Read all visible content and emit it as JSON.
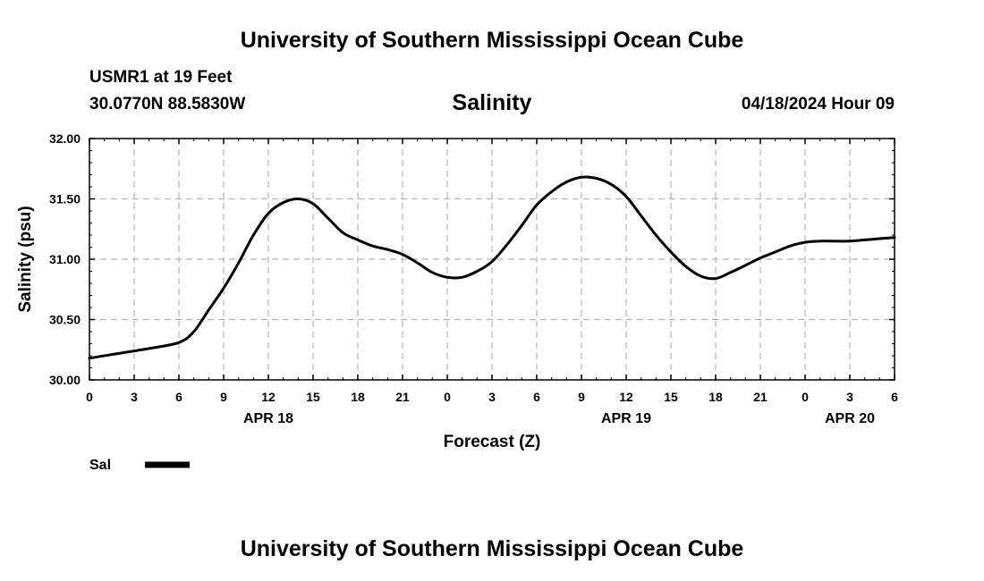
{
  "header": {
    "title": "University of Southern Mississippi Ocean Cube",
    "footer_title": "University of Southern Mississippi Ocean Cube",
    "station": "USMR1 at 19 Feet",
    "coordinates": "30.0770N  88.5830W",
    "parameter": "Salinity",
    "issued": "04/18/2024 Hour 09"
  },
  "chart_data": {
    "type": "line",
    "title": "Salinity",
    "xlabel": "Forecast (Z)",
    "ylabel": "Salinity (psu)",
    "ylim": [
      30.0,
      32.0
    ],
    "xlim": [
      0,
      54
    ],
    "y_ticks": [
      "30.00",
      "30.50",
      "31.00",
      "31.50",
      "32.00"
    ],
    "x_ticks": [
      "0",
      "3",
      "6",
      "9",
      "12",
      "15",
      "18",
      "21",
      "0",
      "3",
      "6",
      "9",
      "12",
      "15",
      "18",
      "21",
      "0",
      "3",
      "6"
    ],
    "day_labels": [
      {
        "label": "APR 18",
        "x": 12
      },
      {
        "label": "APR 19",
        "x": 36
      },
      {
        "label": "APR 20",
        "x": 51
      }
    ],
    "grid": true,
    "legend_position": "bottom-left",
    "series": [
      {
        "name": "Sal",
        "color": "#000000",
        "x": [
          0,
          2,
          4,
          6,
          7,
          8,
          9,
          10,
          11,
          12,
          13,
          14,
          15,
          16,
          17,
          18,
          19,
          20,
          21,
          22,
          23,
          24,
          25,
          26,
          27,
          28,
          29,
          30,
          31,
          32,
          33,
          34,
          35,
          36,
          37,
          38,
          39,
          40,
          41,
          42,
          43,
          44,
          45,
          46,
          47,
          48,
          49,
          50,
          51,
          52,
          53,
          54
        ],
        "y": [
          30.18,
          30.22,
          30.26,
          30.31,
          30.4,
          30.58,
          30.76,
          30.97,
          31.2,
          31.38,
          31.47,
          31.5,
          31.46,
          31.34,
          31.22,
          31.16,
          31.11,
          31.08,
          31.04,
          30.97,
          30.89,
          30.85,
          30.85,
          30.9,
          30.98,
          31.12,
          31.28,
          31.45,
          31.56,
          31.64,
          31.68,
          31.67,
          31.62,
          31.52,
          31.36,
          31.2,
          31.06,
          30.94,
          30.86,
          30.84,
          30.89,
          30.95,
          31.01,
          31.06,
          31.11,
          31.14,
          31.15,
          31.15,
          31.15,
          31.16,
          31.17,
          31.18
        ]
      }
    ]
  }
}
